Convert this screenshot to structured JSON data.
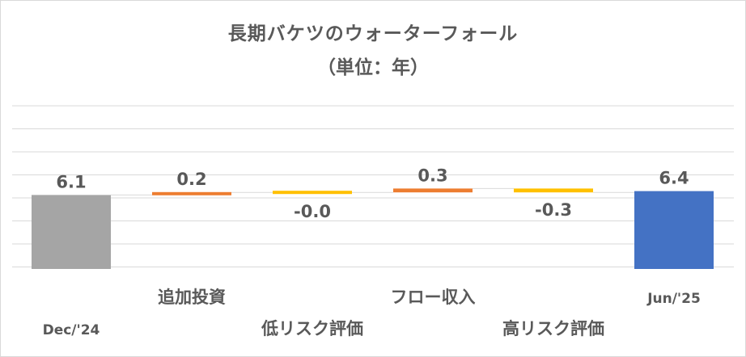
{
  "chart_data": {
    "type": "waterfall",
    "title": "長期バケツのウォーターフォール",
    "subtitle": "（単位：年）",
    "categories": [
      "Dec/'24",
      "追加投資",
      "低リスク評価",
      "フロー収入",
      "高リスク評価",
      "Jun/'25"
    ],
    "values": [
      6.1,
      0.2,
      -0.0,
      0.3,
      -0.3,
      6.4
    ],
    "data_labels": [
      "6.1",
      "0.2",
      "-0.0",
      "0.3",
      "-0.3",
      "6.4"
    ],
    "bar_kinds": [
      "total",
      "increase",
      "decrease",
      "increase",
      "decrease",
      "total"
    ],
    "colors": {
      "start_total": "#a5a5a5",
      "increase": "#ed7d31",
      "decrease": "#ffc000",
      "end_total": "#4472c4",
      "grid": "#d9d9d9",
      "connector": "#d9d9d9",
      "text": "#595959"
    },
    "grid": true,
    "legend": "none"
  }
}
